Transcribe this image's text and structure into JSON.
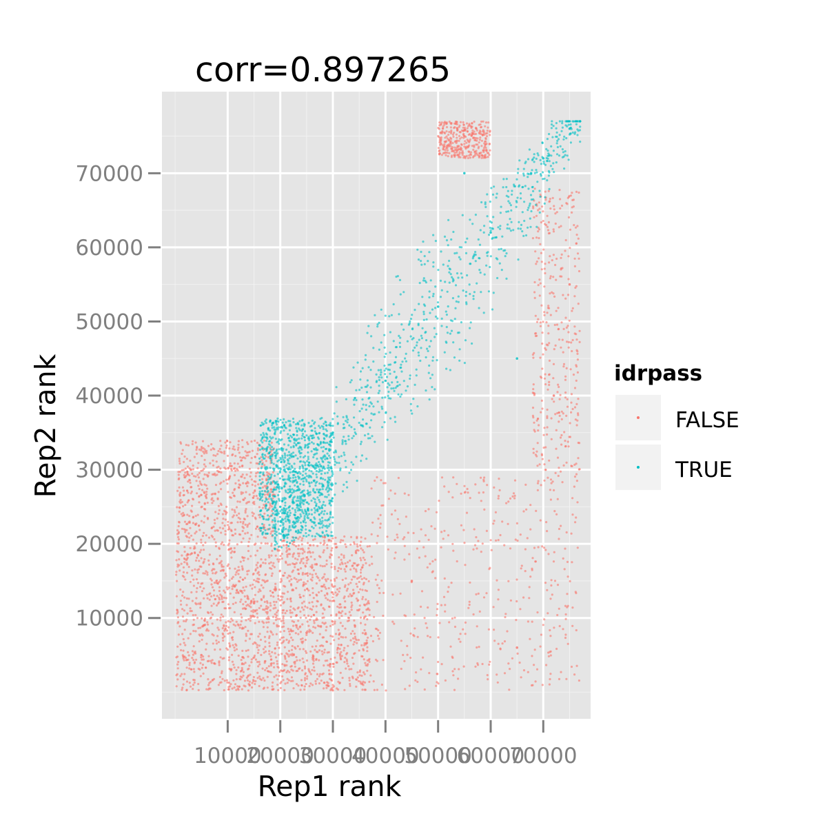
{
  "chart_data": {
    "type": "scatter",
    "title": "corr=0.897265",
    "xlabel": "Rep1 rank",
    "ylabel": "Rep2 rank",
    "xlim": [
      -2500,
      79000
    ],
    "ylim": [
      -3600,
      81000
    ],
    "x_ticks": [
      10000,
      20000,
      30000,
      40000,
      50000,
      60000,
      70000
    ],
    "x_tick_labels": [
      "10000",
      "20000",
      "30000",
      "40000",
      "50000",
      "60000",
      "70000"
    ],
    "y_ticks": [
      10000,
      20000,
      30000,
      40000,
      50000,
      60000,
      70000
    ],
    "y_tick_labels": [
      "10000",
      "20000",
      "30000",
      "40000",
      "50000",
      "60000",
      "70000"
    ],
    "grid": true,
    "legend": {
      "title": "idrpass",
      "placement": "right",
      "entries": [
        {
          "label": "FALSE",
          "color": "#F8766D"
        },
        {
          "label": "TRUE",
          "color": "#00BFC4"
        }
      ]
    },
    "series": [
      {
        "name": "FALSE",
        "color": "#F8766D",
        "regions": [
          {
            "shape": "block",
            "x_range": [
              200,
              19000
            ],
            "y_range": [
              200,
              34000
            ],
            "density": "very high"
          },
          {
            "shape": "block",
            "x_range": [
              19000,
              37000
            ],
            "y_range": [
              200,
              21000
            ],
            "density": "high"
          },
          {
            "shape": "block",
            "x_range": [
              37000,
              77000
            ],
            "y_range": [
              200,
              29000
            ],
            "density": "sparse"
          },
          {
            "shape": "band",
            "x_range": [
              68000,
              77000
            ],
            "y_range": [
              28000,
              68000
            ],
            "density": "medium"
          },
          {
            "shape": "band",
            "x_range": [
              50000,
              60000
            ],
            "y_range": [
              72000,
              77000
            ],
            "density": "medium"
          }
        ],
        "sample_points": [
          {
            "x": 5000,
            "y": 5000
          },
          {
            "x": 15000,
            "y": 12000
          },
          {
            "x": 25000,
            "y": 8000
          },
          {
            "x": 45000,
            "y": 15000
          },
          {
            "x": 65000,
            "y": 6000
          },
          {
            "x": 75000,
            "y": 55000
          },
          {
            "x": 72000,
            "y": 40000
          },
          {
            "x": 55000,
            "y": 75000
          },
          {
            "x": 3000,
            "y": 30000
          }
        ]
      },
      {
        "name": "TRUE",
        "color": "#00BFC4",
        "regions": [
          {
            "shape": "diagonal-band",
            "x_range": [
              19000,
              77000
            ],
            "y_range": [
              19000,
              77000
            ],
            "density": "high"
          },
          {
            "shape": "block",
            "x_range": [
              16000,
              30000
            ],
            "y_range": [
              21000,
              37000
            ],
            "density": "high"
          }
        ],
        "sample_points": [
          {
            "x": 20000,
            "y": 25000
          },
          {
            "x": 30000,
            "y": 35000
          },
          {
            "x": 40000,
            "y": 42000
          },
          {
            "x": 50000,
            "y": 52000
          },
          {
            "x": 60000,
            "y": 62000
          },
          {
            "x": 70000,
            "y": 72000
          },
          {
            "x": 75000,
            "y": 76000
          },
          {
            "x": 55000,
            "y": 70000
          },
          {
            "x": 65000,
            "y": 45000
          }
        ]
      }
    ]
  }
}
